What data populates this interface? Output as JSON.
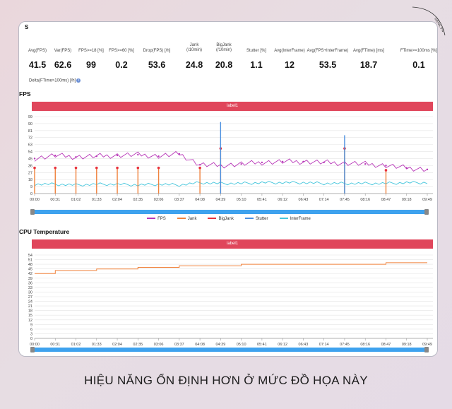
{
  "watermark": "GENK.VN",
  "stats_partial": "S",
  "stats": [
    {
      "label": "Avg(FPS)",
      "value": "41.5"
    },
    {
      "label": "Var(FPS)",
      "value": "62.6"
    },
    {
      "label": "FPS>=18 [%]",
      "value": "99"
    },
    {
      "label": "FPS>=60 [%]",
      "value": "0.2"
    },
    {
      "label": "Drop(FPS) [/h]",
      "value": "53.6"
    },
    {
      "label": "Jank\n(/10min)",
      "value": "24.8"
    },
    {
      "label": "BigJank\n(/10min)",
      "value": "20.8"
    },
    {
      "label": "Stutter [%]",
      "value": "1.1"
    },
    {
      "label": "Avg(InterFrame)",
      "value": "12"
    },
    {
      "label": "Avg(FPS+InterFrame)",
      "value": "53.5"
    },
    {
      "label": "Avg(FTime) [ms]",
      "value": "18.7"
    },
    {
      "label": "FTime>=100ms [%]",
      "value": "0.1"
    }
  ],
  "delta_label": "Delta(FTime>100ms) [/h]",
  "fps_title": "FPS",
  "temp_title": "CPU Temperature",
  "label1": "label1",
  "legend": [
    {
      "name": "FPS",
      "color": "#b837b8"
    },
    {
      "name": "Jank",
      "color": "#f0823c"
    },
    {
      "name": "BigJank",
      "color": "#e8303c"
    },
    {
      "name": "Stutter",
      "color": "#4a8fe0"
    },
    {
      "name": "InterFrame",
      "color": "#46c6dc"
    }
  ],
  "caption": "HIỆU NĂNG ỔN ĐỊNH HƠN Ở MỨC ĐỒ HỌA NÀY",
  "chart_data": [
    {
      "type": "line",
      "title": "FPS",
      "yticks": [
        "0",
        "9",
        "18",
        "27",
        "36",
        "45",
        "54",
        "63",
        "72",
        "81",
        "90",
        "99"
      ],
      "ylim": [
        0,
        99
      ],
      "x": [
        "00:00",
        "00:31",
        "01:02",
        "01:33",
        "02:04",
        "02:35",
        "03:06",
        "03:37",
        "04:08",
        "04:39",
        "05:10",
        "05:41",
        "06:12",
        "06:43",
        "07:14",
        "07:45",
        "08:16",
        "08:47",
        "09:18",
        "09:49"
      ],
      "series": [
        {
          "name": "FPS",
          "values": [
            45,
            49,
            47,
            48,
            49,
            50,
            48,
            51,
            37,
            36,
            38,
            40,
            41,
            41,
            40,
            39,
            38,
            36,
            33,
            31
          ]
        },
        {
          "name": "InterFrame",
          "values": [
            12,
            12,
            11,
            12,
            12,
            11,
            12,
            11,
            14,
            13,
            13,
            14,
            14,
            14,
            13,
            13,
            13,
            13,
            14,
            14
          ]
        },
        {
          "name": "Jank",
          "values": [
            33,
            33,
            33,
            33,
            33,
            33,
            33,
            0,
            33,
            58,
            0,
            0,
            0,
            0,
            0,
            58,
            0,
            30,
            0,
            0
          ]
        },
        {
          "name": "Stutter",
          "values": [
            0,
            0,
            0,
            0,
            0,
            0,
            0,
            0,
            0,
            92,
            0,
            0,
            0,
            0,
            0,
            75,
            0,
            0,
            0,
            0
          ]
        }
      ]
    },
    {
      "type": "line",
      "title": "CPU Temperature",
      "yticks": [
        "0",
        "3",
        "6",
        "9",
        "12",
        "15",
        "18",
        "21",
        "24",
        "27",
        "30",
        "33",
        "36",
        "39",
        "42",
        "45",
        "48",
        "51",
        "54"
      ],
      "ylim": [
        0,
        54
      ],
      "x": [
        "00:00",
        "00:31",
        "01:02",
        "01:33",
        "02:04",
        "02:35",
        "03:06",
        "03:37",
        "04:08",
        "04:39",
        "05:10",
        "05:41",
        "06:12",
        "06:43",
        "07:14",
        "07:45",
        "08:16",
        "08:47",
        "09:18",
        "09:49"
      ],
      "series": [
        {
          "name": "CPU Temperature",
          "values": [
            42,
            44,
            44,
            45,
            45,
            46,
            46,
            47,
            47,
            47,
            48,
            48,
            48,
            48,
            48,
            48,
            48,
            49,
            49,
            49
          ]
        }
      ]
    }
  ]
}
